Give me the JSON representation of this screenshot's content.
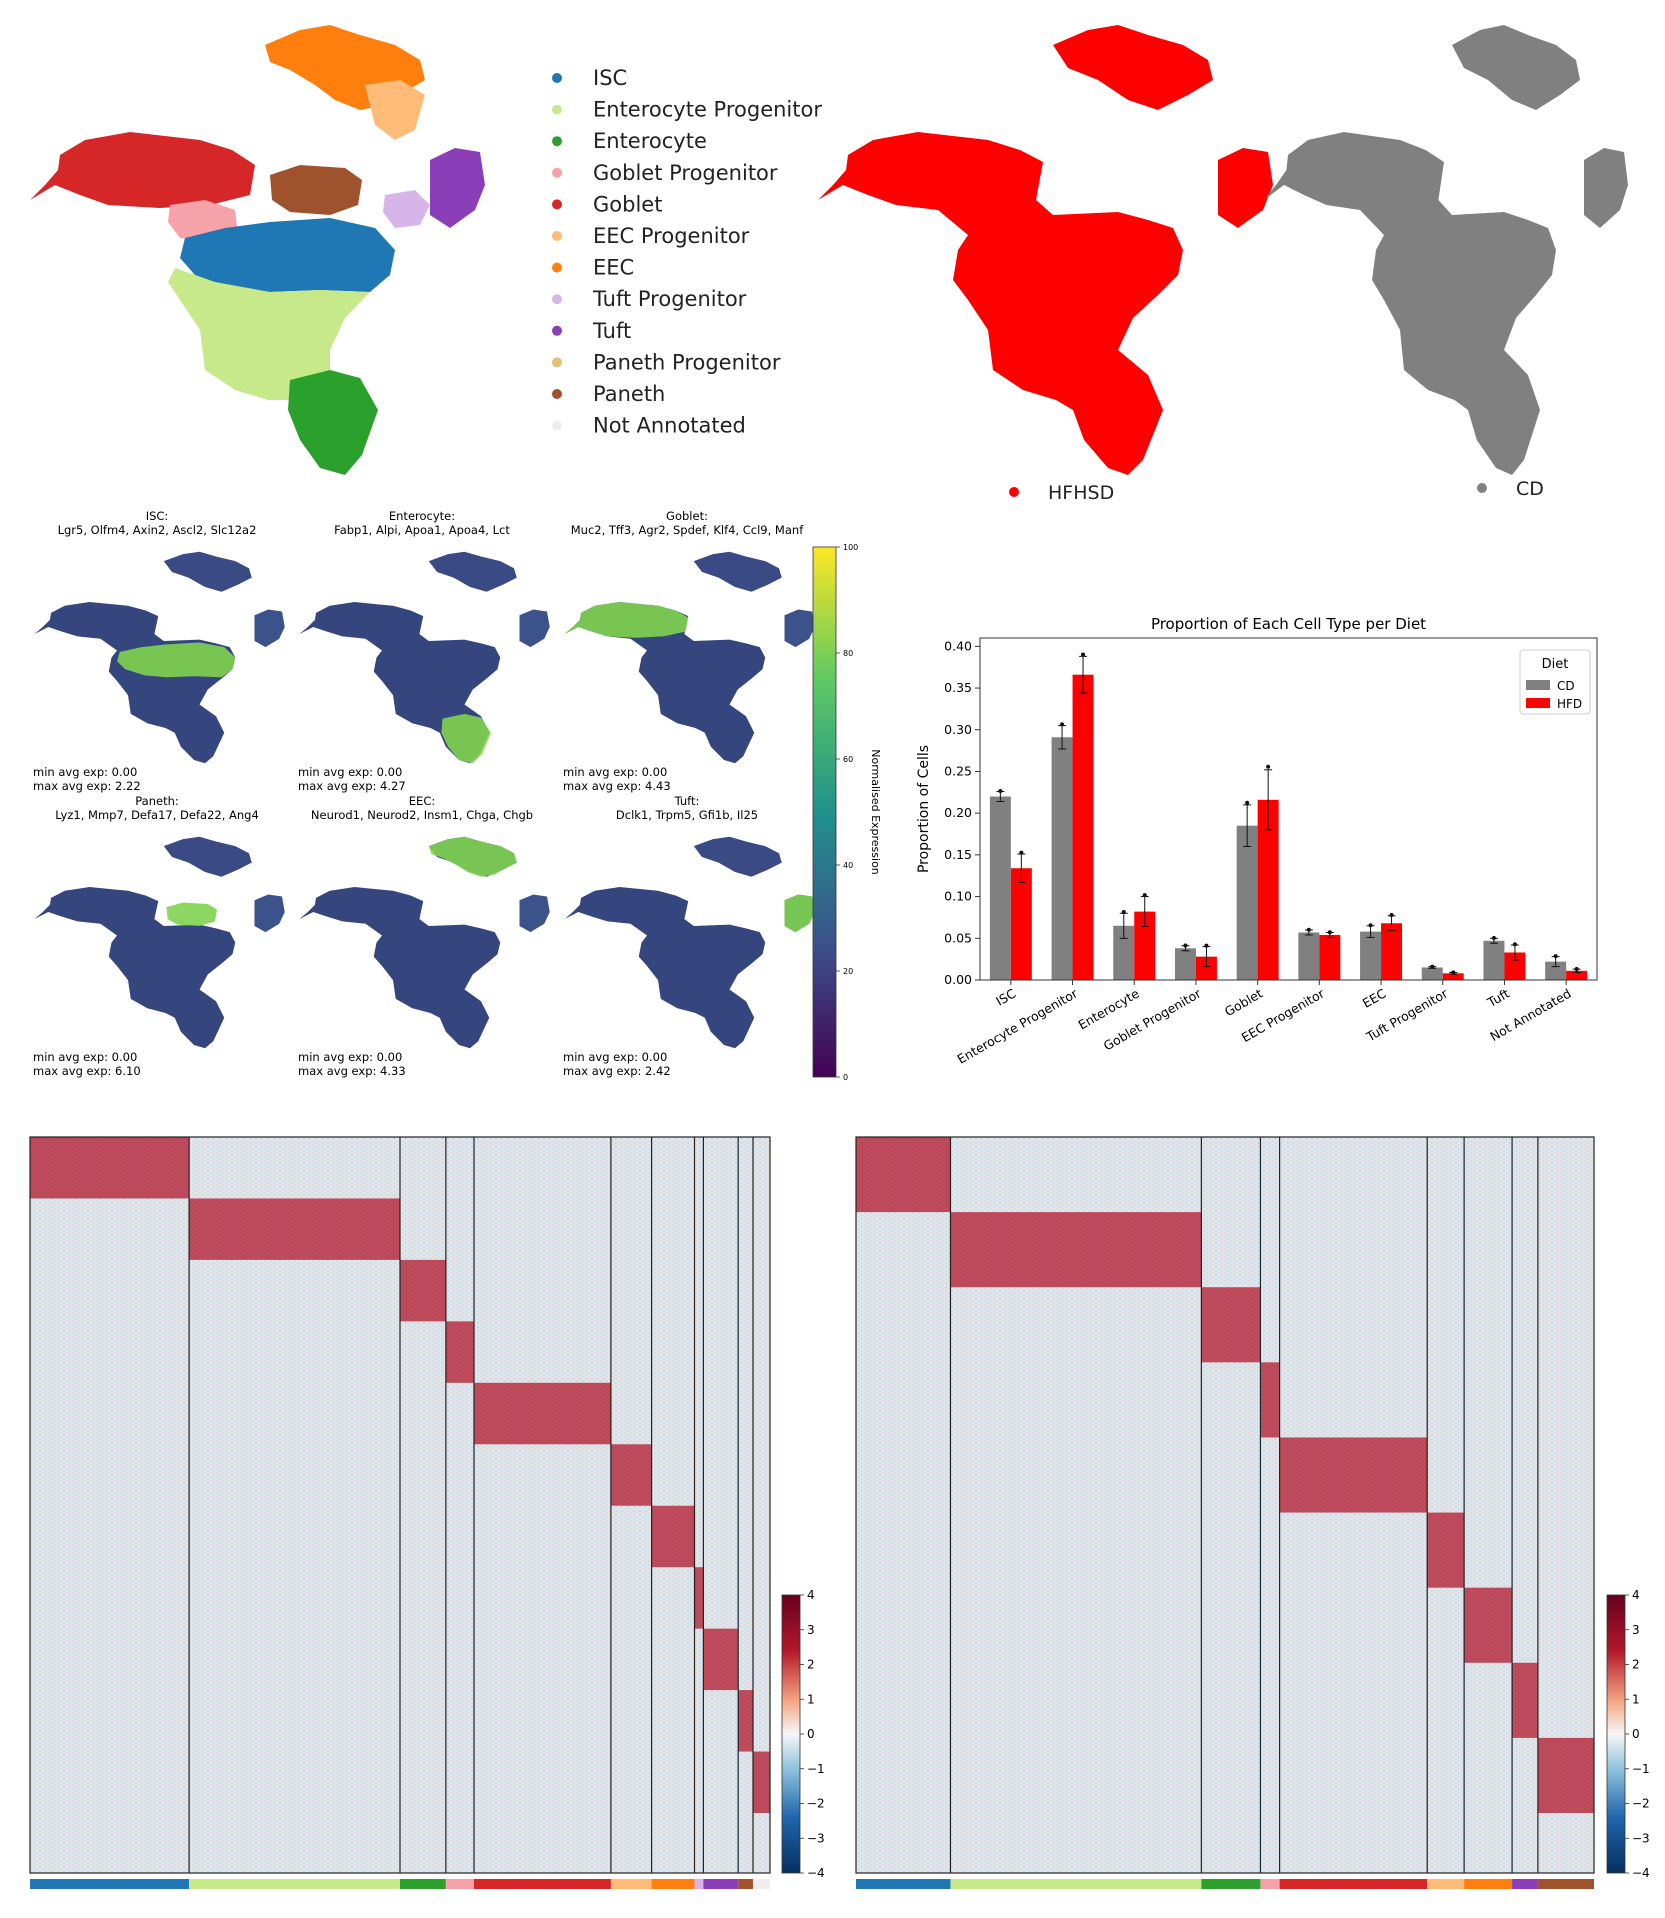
{
  "umap_legend": {
    "items": [
      {
        "label": "ISC",
        "color": "#1f77b4"
      },
      {
        "label": "Enterocyte Progenitor",
        "color": "#c7e98a"
      },
      {
        "label": "Enterocyte",
        "color": "#2ca02c"
      },
      {
        "label": "Goblet Progenitor",
        "color": "#f7a1a8"
      },
      {
        "label": "Goblet",
        "color": "#d62728"
      },
      {
        "label": "EEC Progenitor",
        "color": "#ffbb78"
      },
      {
        "label": "EEC",
        "color": "#ff7f0e"
      },
      {
        "label": "Tuft Progenitor",
        "color": "#d7b5e8"
      },
      {
        "label": "Tuft",
        "color": "#8a3fb8"
      },
      {
        "label": "Paneth Progenitor",
        "color": "#e5c07b"
      },
      {
        "label": "Paneth",
        "color": "#a0522d"
      },
      {
        "label": "Not Annotated",
        "color": "#eeeeee"
      }
    ]
  },
  "diet_umaps": [
    {
      "label": "HFHSD",
      "color": "#ff0000"
    },
    {
      "label": "CD",
      "color": "#808080"
    }
  ],
  "marker_panels": [
    {
      "title": "ISC:",
      "genes": "Lgr5, Olfm4, Axin2, Ascl2, Slc12a2",
      "min": "min avg exp: 0.00",
      "max": "max avg exp: 2.22",
      "hot": "isc"
    },
    {
      "title": "Enterocyte:",
      "genes": "Fabp1, Alpi, Apoa1, Apoa4, Lct",
      "min": "min avg exp: 0.00",
      "max": "max avg exp: 4.27",
      "hot": "enterocyte"
    },
    {
      "title": "Goblet:",
      "genes": "Muc2, Tff3, Agr2, Spdef, Klf4, Ccl9, Manf",
      "min": "min avg exp: 0.00",
      "max": "max avg exp: 4.43",
      "hot": "goblet"
    },
    {
      "title": "Paneth:",
      "genes": "Lyz1, Mmp7, Defa17, Defa22, Ang4",
      "min": "min avg exp: 0.00",
      "max": "max avg exp: 6.10",
      "hot": "paneth"
    },
    {
      "title": "EEC:",
      "genes": "Neurod1, Neurod2, Insm1, Chga, Chgb",
      "min": "min avg exp: 0.00",
      "max": "max avg exp: 4.33",
      "hot": "eec"
    },
    {
      "title": "Tuft:",
      "genes": "Dclk1, Trpm5, Gfi1b, Il25",
      "min": "min avg exp: 0.00",
      "max": "max avg exp: 2.42",
      "hot": "tuft"
    }
  ],
  "expression_colorbar": {
    "label": "Normalised Expression",
    "ticks": [
      "0",
      "20",
      "40",
      "60",
      "80",
      "100"
    ]
  },
  "chart_data": [
    {
      "type": "bar",
      "title": "Proportion of Each Cell Type per Diet",
      "xlabel": "",
      "ylabel": "Proportion of Cells",
      "ylim": [
        0,
        0.41
      ],
      "yticks": [
        "0.00",
        "0.05",
        "0.10",
        "0.15",
        "0.20",
        "0.25",
        "0.30",
        "0.35",
        "0.40"
      ],
      "legend_title": "Diet",
      "legend_position": "top-right",
      "categories": [
        "ISC",
        "Enterocyte Progenitor",
        "Enterocyte",
        "Goblet Progenitor",
        "Goblet",
        "EEC Progenitor",
        "EEC",
        "Tuft Progenitor",
        "Tuft",
        "Not Annotated"
      ],
      "series": [
        {
          "name": "CD",
          "color": "#808080",
          "values": [
            0.22,
            0.291,
            0.065,
            0.038,
            0.185,
            0.057,
            0.058,
            0.015,
            0.047,
            0.022
          ],
          "errors": [
            0.006,
            0.014,
            0.015,
            0.003,
            0.025,
            0.003,
            0.007,
            0.001,
            0.003,
            0.006
          ]
        },
        {
          "name": "HFD",
          "color": "#ff0000",
          "values": [
            0.134,
            0.366,
            0.082,
            0.028,
            0.216,
            0.054,
            0.068,
            0.008,
            0.033,
            0.011
          ],
          "errors": [
            0.017,
            0.022,
            0.018,
            0.012,
            0.036,
            0.003,
            0.009,
            0.001,
            0.009,
            0.002
          ]
        }
      ]
    },
    {
      "type": "heatmap",
      "colorscale": "RdBu_r",
      "colorbar_ticks": [
        "4",
        "3",
        "2",
        "1",
        "0",
        "−1",
        "−2",
        "−3",
        "−4"
      ],
      "groups": [
        {
          "label": "ISC",
          "color": "#1f77b4",
          "frac": 0.215
        },
        {
          "label": "Enterocyte Progenitor",
          "color": "#c7e98a",
          "frac": 0.285
        },
        {
          "label": "Enterocyte",
          "color": "#2ca02c",
          "frac": 0.062
        },
        {
          "label": "Goblet Progenitor",
          "color": "#f7a1a8",
          "frac": 0.038
        },
        {
          "label": "Goblet",
          "color": "#d62728",
          "frac": 0.185
        },
        {
          "label": "EEC Progenitor",
          "color": "#ffbb78",
          "frac": 0.055
        },
        {
          "label": "EEC",
          "color": "#ff7f0e",
          "frac": 0.058
        },
        {
          "label": "Tuft Progenitor",
          "color": "#d7b5e8",
          "frac": 0.012
        },
        {
          "label": "Tuft",
          "color": "#8a3fb8",
          "frac": 0.047
        },
        {
          "label": "Paneth",
          "color": "#a0522d",
          "frac": 0.02
        },
        {
          "label": "Not Annotated",
          "color": "#eeeeee",
          "frac": 0.023
        }
      ]
    },
    {
      "type": "heatmap",
      "colorscale": "RdBu_r",
      "colorbar_ticks": [
        "4",
        "3",
        "2",
        "1",
        "0",
        "−1",
        "−2",
        "−3",
        "−4"
      ],
      "groups": [
        {
          "label": "ISC",
          "color": "#1f77b4",
          "frac": 0.128
        },
        {
          "label": "Enterocyte Progenitor",
          "color": "#c7e98a",
          "frac": 0.34
        },
        {
          "label": "Enterocyte",
          "color": "#2ca02c",
          "frac": 0.08
        },
        {
          "label": "Goblet Progenitor",
          "color": "#f7a1a8",
          "frac": 0.026
        },
        {
          "label": "Goblet",
          "color": "#d62728",
          "frac": 0.2
        },
        {
          "label": "EEC Progenitor",
          "color": "#ffbb78",
          "frac": 0.05
        },
        {
          "label": "EEC",
          "color": "#ff7f0e",
          "frac": 0.065
        },
        {
          "label": "Tuft",
          "color": "#8a3fb8",
          "frac": 0.035
        },
        {
          "label": "Paneth",
          "color": "#a0522d",
          "frac": 0.076
        }
      ]
    }
  ]
}
